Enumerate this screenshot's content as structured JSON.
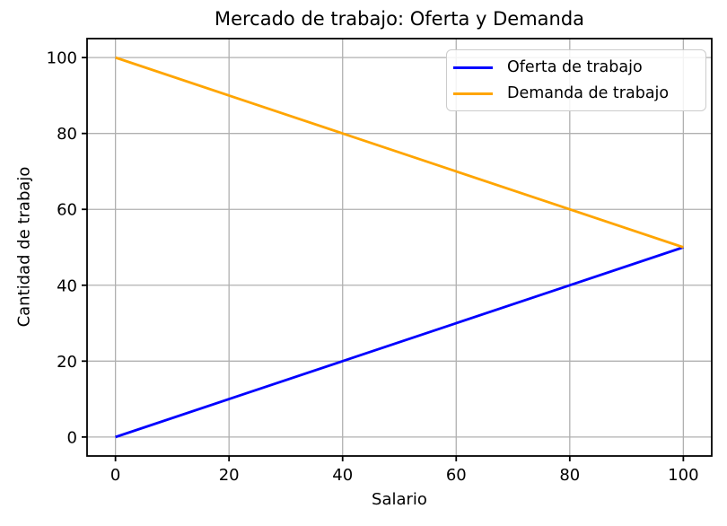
{
  "chart_data": {
    "type": "line",
    "title": "Mercado de trabajo: Oferta y Demanda",
    "xlabel": "Salario",
    "ylabel": "Cantidad de trabajo",
    "x": [
      0,
      20,
      40,
      60,
      80,
      100
    ],
    "series": [
      {
        "name": "Oferta de trabajo",
        "color": "#0000ff",
        "values": [
          0,
          10,
          20,
          30,
          40,
          50
        ]
      },
      {
        "name": "Demanda de trabajo",
        "color": "#ffa500",
        "values": [
          100,
          90,
          80,
          70,
          60,
          50
        ]
      }
    ],
    "xlim": [
      -5,
      105
    ],
    "ylim": [
      -5,
      105
    ],
    "xticks": [
      0,
      20,
      40,
      60,
      80,
      100
    ],
    "yticks": [
      0,
      20,
      40,
      60,
      80,
      100
    ],
    "xtick_labels": [
      "0",
      "20",
      "40",
      "60",
      "80",
      "100"
    ],
    "ytick_labels": [
      "0",
      "20",
      "40",
      "60",
      "80",
      "100"
    ],
    "grid": true,
    "grid_color": "#b0b0b0",
    "spine_color": "#000000",
    "text_color": "#000000",
    "legend_position": "upper right"
  }
}
